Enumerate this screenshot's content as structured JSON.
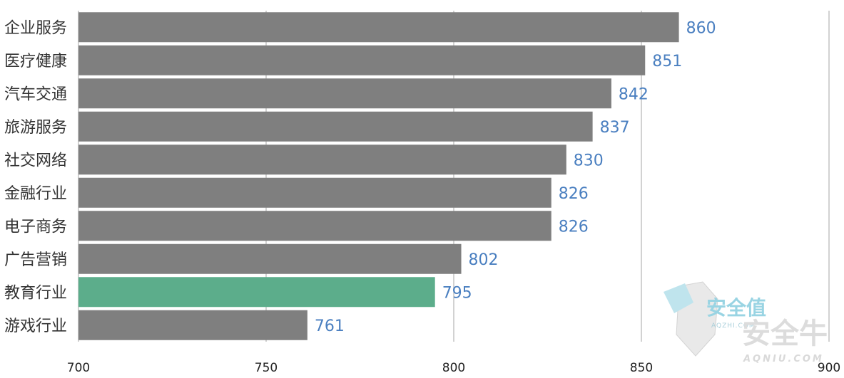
{
  "chart_data": {
    "type": "bar",
    "orientation": "horizontal",
    "categories": [
      "企业服务",
      "医疗健康",
      "汽车交通",
      "旅游服务",
      "社交网络",
      "金融行业",
      "电子商务",
      "广告营销",
      "教育行业",
      "游戏行业"
    ],
    "values": [
      860,
      851,
      842,
      837,
      830,
      826,
      826,
      802,
      795,
      761
    ],
    "xlim": [
      700,
      900
    ],
    "xticks": [
      700,
      750,
      800,
      850,
      900
    ],
    "grid": "vertical",
    "highlight_category": "教育行业",
    "colors": {
      "bar": "#7f7f7f",
      "highlight_bar": "#5cad8b",
      "value_label": "#4a7fc0",
      "gridline": "#a6a6a6"
    }
  },
  "watermark": {
    "top_text": "安全值",
    "top_sub": "AQZHI.COM",
    "bottom_text": "安全牛",
    "bottom_sub": "AQNIU.COM"
  }
}
